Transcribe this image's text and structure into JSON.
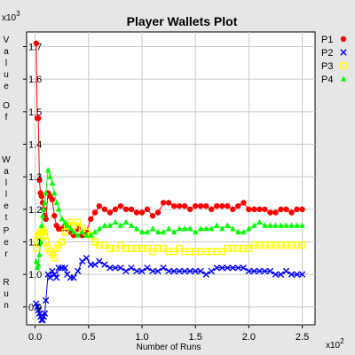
{
  "chart_data": {
    "type": "scatter",
    "title": "Player Wallets Plot",
    "xlabel": "Number of Runs",
    "ylabel": "Value Of Wallet Per Run",
    "ylabel_words": [
      "Value",
      "Of",
      "Wallet",
      "Per",
      "Run"
    ],
    "x_multiplier": "x10",
    "x_multiplier_exp": "2",
    "y_multiplier": "x10",
    "y_multiplier_exp": "3",
    "xlim": [
      -0.08,
      2.62
    ],
    "ylim": [
      0.845,
      1.745
    ],
    "xticks": [
      0.0,
      0.5,
      1.0,
      1.5,
      2.0,
      2.5
    ],
    "xtick_labels": [
      "0.0",
      "0.5",
      "1.0",
      "1.5",
      "2.0",
      "2.5"
    ],
    "yticks": [
      0.9,
      1.0,
      1.1,
      1.2,
      1.3,
      1.4,
      1.5,
      1.6,
      1.7
    ],
    "ytick_labels": [
      "0.9",
      "1.0",
      "1.1",
      "1.2",
      "1.3",
      "1.4",
      "1.5",
      "1.6",
      "1.7"
    ],
    "grid": true,
    "legend_position": "right",
    "series": [
      {
        "name": "P1",
        "marker": "circle",
        "color": "#ff0000",
        "x": [
          0.01,
          0.02,
          0.03,
          0.04,
          0.05,
          0.06,
          0.07,
          0.08,
          0.09,
          0.1,
          0.12,
          0.14,
          0.16,
          0.18,
          0.2,
          0.22,
          0.25,
          0.28,
          0.3,
          0.33,
          0.36,
          0.4,
          0.44,
          0.48,
          0.52,
          0.56,
          0.6,
          0.65,
          0.7,
          0.75,
          0.8,
          0.85,
          0.9,
          0.95,
          1.0,
          1.05,
          1.1,
          1.15,
          1.2,
          1.25,
          1.3,
          1.35,
          1.4,
          1.45,
          1.5,
          1.55,
          1.6,
          1.65,
          1.7,
          1.75,
          1.8,
          1.85,
          1.9,
          1.95,
          2.0,
          2.05,
          2.1,
          2.15,
          2.2,
          2.25,
          2.3,
          2.35,
          2.4,
          2.45,
          2.5
        ],
        "y": [
          1.71,
          1.48,
          1.48,
          1.29,
          1.25,
          1.24,
          1.22,
          1.2,
          1.18,
          1.17,
          1.25,
          1.24,
          1.23,
          1.18,
          1.15,
          1.14,
          1.14,
          1.15,
          1.14,
          1.13,
          1.12,
          1.14,
          1.12,
          1.13,
          1.17,
          1.19,
          1.21,
          1.2,
          1.19,
          1.2,
          1.21,
          1.2,
          1.2,
          1.19,
          1.19,
          1.2,
          1.18,
          1.19,
          1.22,
          1.22,
          1.21,
          1.21,
          1.21,
          1.2,
          1.21,
          1.21,
          1.21,
          1.2,
          1.21,
          1.21,
          1.21,
          1.2,
          1.21,
          1.22,
          1.2,
          1.2,
          1.2,
          1.2,
          1.19,
          1.19,
          1.2,
          1.2,
          1.19,
          1.2,
          1.2
        ]
      },
      {
        "name": "P2",
        "marker": "x",
        "color": "#0000ff",
        "x": [
          0.01,
          0.02,
          0.03,
          0.04,
          0.05,
          0.06,
          0.07,
          0.08,
          0.09,
          0.1,
          0.12,
          0.14,
          0.16,
          0.18,
          0.2,
          0.22,
          0.25,
          0.28,
          0.3,
          0.33,
          0.36,
          0.4,
          0.44,
          0.48,
          0.52,
          0.56,
          0.6,
          0.65,
          0.7,
          0.75,
          0.8,
          0.85,
          0.9,
          0.95,
          1.0,
          1.05,
          1.1,
          1.15,
          1.2,
          1.25,
          1.3,
          1.35,
          1.4,
          1.45,
          1.5,
          1.55,
          1.6,
          1.65,
          1.7,
          1.75,
          1.8,
          1.85,
          1.9,
          1.95,
          2.0,
          2.05,
          2.1,
          2.15,
          2.2,
          2.25,
          2.3,
          2.35,
          2.4,
          2.45,
          2.5
        ],
        "y": [
          0.91,
          0.9,
          0.89,
          0.88,
          0.87,
          0.86,
          0.86,
          0.87,
          0.88,
          0.92,
          1.0,
          0.99,
          1.01,
          1.0,
          0.99,
          1.02,
          1.02,
          1.02,
          1.0,
          0.99,
          0.99,
          1.01,
          1.04,
          1.05,
          1.03,
          1.03,
          1.04,
          1.03,
          1.02,
          1.02,
          1.02,
          1.01,
          1.02,
          1.01,
          1.01,
          1.02,
          1.01,
          1.01,
          1.02,
          1.01,
          1.01,
          1.01,
          1.01,
          1.01,
          1.01,
          1.01,
          1.0,
          1.01,
          1.02,
          1.02,
          1.02,
          1.02,
          1.02,
          1.02,
          1.01,
          1.01,
          1.01,
          1.01,
          1.01,
          1.0,
          1.0,
          1.01,
          1.0,
          1.0,
          1.0
        ]
      },
      {
        "name": "P3",
        "marker": "square",
        "color": "#ffff00",
        "x": [
          0.01,
          0.02,
          0.03,
          0.04,
          0.05,
          0.06,
          0.07,
          0.08,
          0.09,
          0.1,
          0.12,
          0.14,
          0.16,
          0.18,
          0.2,
          0.22,
          0.25,
          0.28,
          0.3,
          0.33,
          0.36,
          0.4,
          0.44,
          0.48,
          0.52,
          0.56,
          0.6,
          0.65,
          0.7,
          0.75,
          0.8,
          0.85,
          0.9,
          0.95,
          1.0,
          1.05,
          1.1,
          1.15,
          1.2,
          1.25,
          1.3,
          1.35,
          1.4,
          1.45,
          1.5,
          1.55,
          1.6,
          1.65,
          1.7,
          1.75,
          1.8,
          1.85,
          1.9,
          1.95,
          2.0,
          2.05,
          2.1,
          2.15,
          2.2,
          2.25,
          2.3,
          2.35,
          2.4,
          2.45,
          2.5
        ],
        "y": [
          1.08,
          1.1,
          1.12,
          1.12,
          1.13,
          1.13,
          1.14,
          1.13,
          1.12,
          1.1,
          1.08,
          1.07,
          1.06,
          1.05,
          1.08,
          1.09,
          1.1,
          1.13,
          1.15,
          1.16,
          1.15,
          1.16,
          1.14,
          1.13,
          1.12,
          1.1,
          1.09,
          1.09,
          1.08,
          1.08,
          1.09,
          1.08,
          1.08,
          1.08,
          1.08,
          1.08,
          1.07,
          1.08,
          1.08,
          1.07,
          1.07,
          1.08,
          1.07,
          1.07,
          1.07,
          1.07,
          1.07,
          1.07,
          1.07,
          1.07,
          1.08,
          1.08,
          1.08,
          1.08,
          1.08,
          1.09,
          1.09,
          1.09,
          1.09,
          1.09,
          1.09,
          1.09,
          1.09,
          1.09,
          1.09
        ]
      },
      {
        "name": "P4",
        "marker": "triangle",
        "color": "#00ff00",
        "x": [
          0.01,
          0.02,
          0.03,
          0.04,
          0.05,
          0.06,
          0.07,
          0.08,
          0.09,
          0.1,
          0.12,
          0.14,
          0.16,
          0.18,
          0.2,
          0.22,
          0.25,
          0.28,
          0.3,
          0.33,
          0.36,
          0.4,
          0.44,
          0.48,
          0.52,
          0.56,
          0.6,
          0.65,
          0.7,
          0.75,
          0.8,
          0.85,
          0.9,
          0.95,
          1.0,
          1.05,
          1.1,
          1.15,
          1.2,
          1.25,
          1.3,
          1.35,
          1.4,
          1.45,
          1.5,
          1.55,
          1.6,
          1.65,
          1.7,
          1.75,
          1.8,
          1.85,
          1.9,
          1.95,
          2.0,
          2.05,
          2.1,
          2.15,
          2.2,
          2.25,
          2.3,
          2.35,
          2.4,
          2.45,
          2.5
        ],
        "y": [
          1.04,
          1.02,
          1.03,
          1.06,
          1.1,
          1.15,
          1.18,
          1.2,
          1.22,
          1.25,
          1.32,
          1.3,
          1.28,
          1.25,
          1.22,
          1.2,
          1.17,
          1.16,
          1.15,
          1.14,
          1.13,
          1.12,
          1.13,
          1.12,
          1.12,
          1.13,
          1.14,
          1.15,
          1.15,
          1.16,
          1.15,
          1.16,
          1.15,
          1.14,
          1.13,
          1.13,
          1.14,
          1.13,
          1.13,
          1.14,
          1.13,
          1.14,
          1.14,
          1.14,
          1.13,
          1.14,
          1.14,
          1.14,
          1.15,
          1.14,
          1.15,
          1.14,
          1.13,
          1.13,
          1.14,
          1.15,
          1.16,
          1.15,
          1.15,
          1.15,
          1.15,
          1.15,
          1.15,
          1.15,
          1.15
        ]
      }
    ]
  }
}
